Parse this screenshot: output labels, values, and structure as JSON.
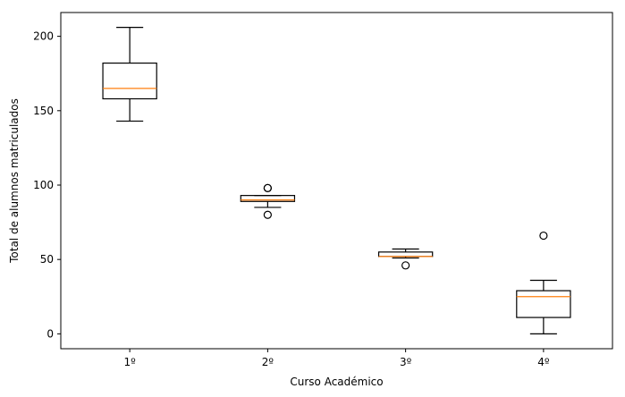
{
  "chart_data": {
    "type": "box",
    "xlabel": "Curso Académico",
    "ylabel": "Total de alumnos matriculados",
    "categories": [
      "1º",
      "2º",
      "3º",
      "4º"
    ],
    "ylim": [
      -10,
      216
    ],
    "yticks": [
      0,
      50,
      100,
      150,
      200
    ],
    "grid": false,
    "boxes": [
      {
        "category": "1º",
        "whisker_low": 143,
        "q1": 158,
        "median": 165,
        "q3": 182,
        "whisker_high": 206,
        "outliers": []
      },
      {
        "category": "2º",
        "whisker_low": 85,
        "q1": 89,
        "median": 90,
        "q3": 93,
        "whisker_high": 93,
        "outliers": [
          98,
          98,
          80
        ]
      },
      {
        "category": "3º",
        "whisker_low": 51,
        "q1": 52,
        "median": 52,
        "q3": 55,
        "whisker_high": 57,
        "outliers": [
          46
        ]
      },
      {
        "category": "4º",
        "whisker_low": 0,
        "q1": 11,
        "median": 25,
        "q3": 29,
        "whisker_high": 36,
        "outliers": [
          66
        ]
      }
    ],
    "colors": {
      "box": "#000000",
      "median": "#ff7f0e",
      "outlier": "#000000"
    }
  }
}
